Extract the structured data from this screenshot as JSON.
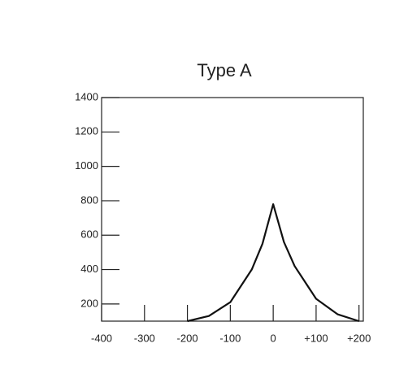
{
  "chart_data": {
    "type": "line",
    "title": "Type A",
    "x": [
      -200,
      -150,
      -100,
      -50,
      -25,
      0,
      25,
      50,
      100,
      150,
      200
    ],
    "series": [
      {
        "color": "#111111",
        "values": [
          100,
          130,
          210,
          400,
          550,
          780,
          560,
          420,
          230,
          140,
          100
        ]
      }
    ],
    "xlim": [
      -400,
      210
    ],
    "xticks": [
      -400,
      -300,
      -200,
      -100,
      0,
      {
        "value": 100,
        "label": "+100"
      },
      {
        "value": 200,
        "label": "+200"
      }
    ],
    "ylim": [
      100,
      1400
    ],
    "yticks": [
      200,
      400,
      600,
      800,
      1000,
      1200,
      1400
    ]
  }
}
